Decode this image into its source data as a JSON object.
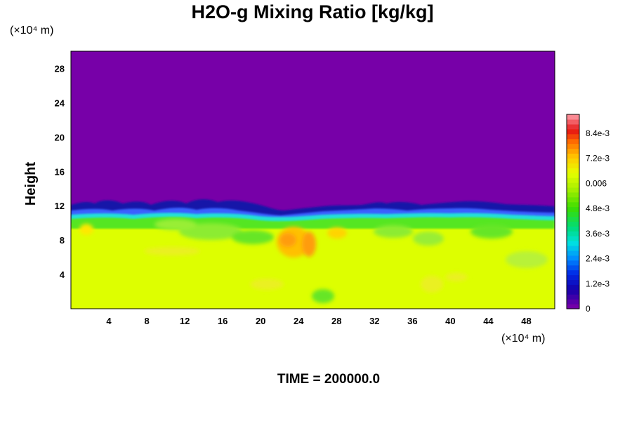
{
  "chart_data": {
    "type": "heatmap",
    "title": "H2O-g Mixing Ratio [kg/kg]",
    "ylabel": "Height",
    "x_unit": "(×10⁴ m)",
    "y_unit": "(×10⁴ m)",
    "footer": "TIME = 200000.0",
    "xlim": [
      0,
      51
    ],
    "ylim": [
      0,
      30
    ],
    "x_ticks": [
      4,
      8,
      12,
      16,
      20,
      24,
      28,
      32,
      36,
      40,
      44,
      48
    ],
    "y_ticks": [
      4,
      8,
      12,
      16,
      20,
      24,
      28
    ],
    "colorbar": {
      "range": [
        0,
        0.0093
      ],
      "tick_labels": [
        "0",
        "1.2e-3",
        "2.4e-3",
        "3.6e-3",
        "4.8e-3",
        "0.006",
        "7.2e-3",
        "8.4e-3"
      ],
      "tick_values": [
        0,
        0.0012,
        0.0024,
        0.0036,
        0.0048,
        0.006,
        0.0072,
        0.0084
      ]
    },
    "field_summary": {
      "upper_value": 0,
      "lower_value": 0.0064,
      "transition_height": 11
    },
    "colors": {
      "upper_region": "#7700a8",
      "lower_region": "#ddff00"
    }
  }
}
